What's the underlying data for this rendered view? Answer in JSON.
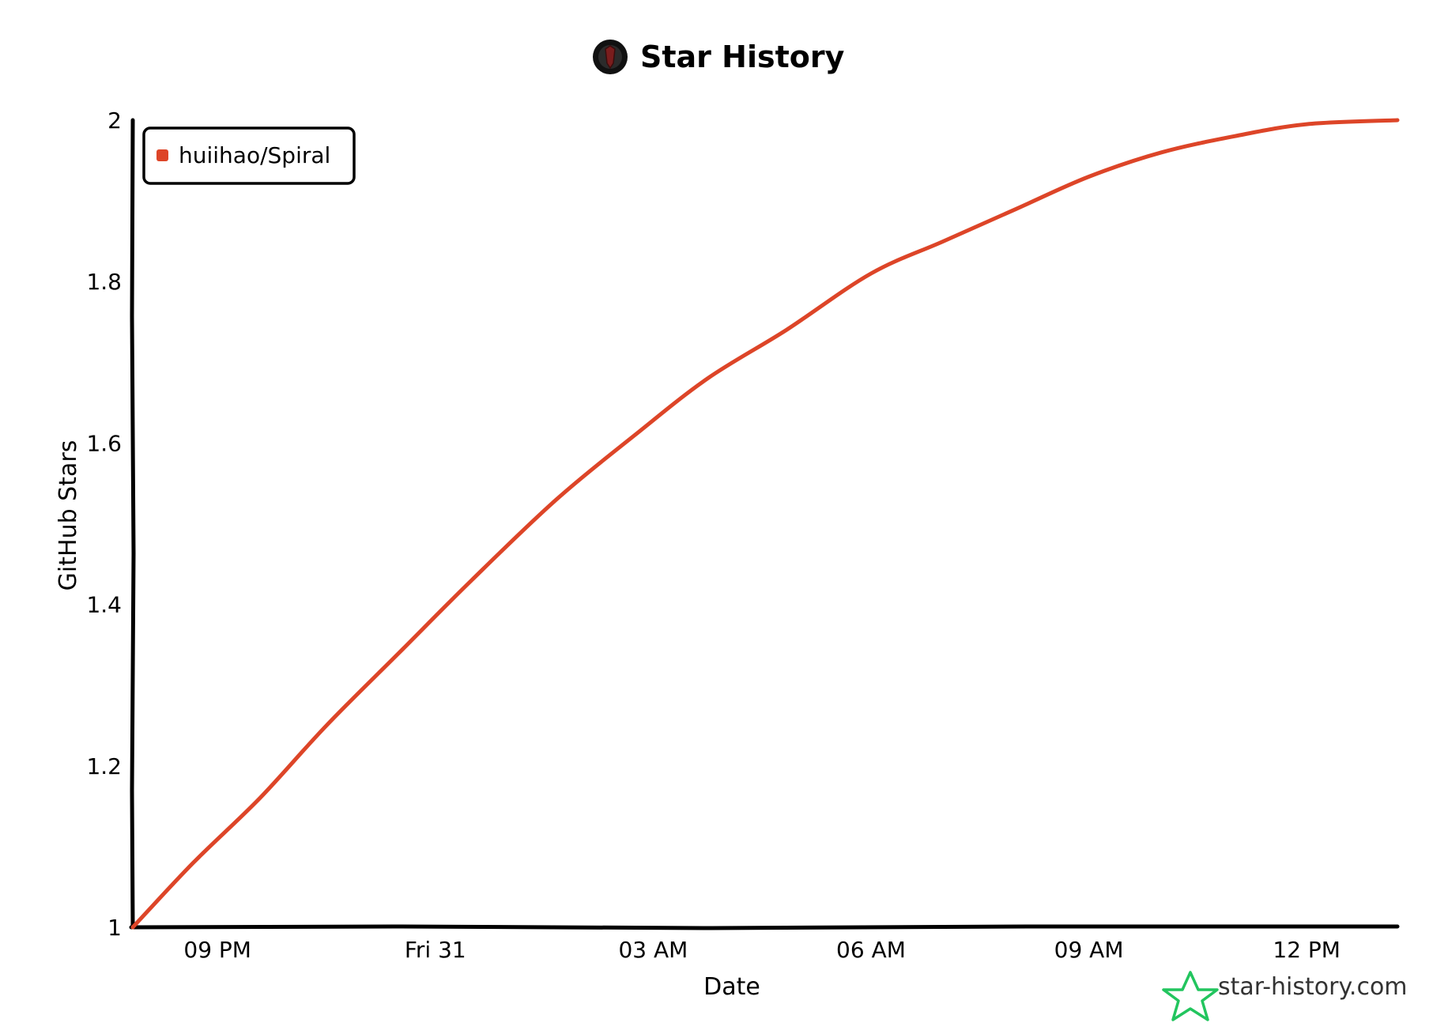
{
  "header": {
    "title": "Star History",
    "logo_icon": "repo-avatar-icon"
  },
  "watermark": {
    "text": "star-history.com",
    "icon": "star-outline-icon",
    "icon_color": "#22c55e"
  },
  "chart_data": {
    "type": "line",
    "title": "Star History",
    "xlabel": "Date",
    "ylabel": "GitHub Stars",
    "ylim": [
      1,
      2
    ],
    "xlim": [
      "19:50",
      "13:15"
    ],
    "y_ticks": [
      "1",
      "1.2",
      "1.4",
      "1.6",
      "1.8",
      "2"
    ],
    "x_ticks": [
      "09 PM",
      "Fri 31",
      "03 AM",
      "06 AM",
      "09 AM",
      "12 PM"
    ],
    "x_tick_times": [
      "21:00",
      "00:00",
      "03:00",
      "06:00",
      "09:00",
      "12:00"
    ],
    "legend": {
      "placement": "top-left"
    },
    "grid": false,
    "series": [
      {
        "name": "huiihao/Spiral",
        "color": "#dd4528",
        "points": [
          {
            "x": "19:50",
            "y": 1.0
          },
          {
            "x": "20:40",
            "y": 1.08
          },
          {
            "x": "21:35",
            "y": 1.16
          },
          {
            "x": "22:30",
            "y": 1.25
          },
          {
            "x": "23:30",
            "y": 1.34
          },
          {
            "x": "00:30",
            "y": 1.43
          },
          {
            "x": "01:40",
            "y": 1.53
          },
          {
            "x": "02:45",
            "y": 1.61
          },
          {
            "x": "03:45",
            "y": 1.68
          },
          {
            "x": "04:50",
            "y": 1.74
          },
          {
            "x": "06:00",
            "y": 1.81
          },
          {
            "x": "07:00",
            "y": 1.85
          },
          {
            "x": "08:00",
            "y": 1.89
          },
          {
            "x": "09:00",
            "y": 1.93
          },
          {
            "x": "10:00",
            "y": 1.96
          },
          {
            "x": "11:00",
            "y": 1.98
          },
          {
            "x": "12:00",
            "y": 1.995
          },
          {
            "x": "13:15",
            "y": 2.0
          }
        ]
      }
    ]
  }
}
